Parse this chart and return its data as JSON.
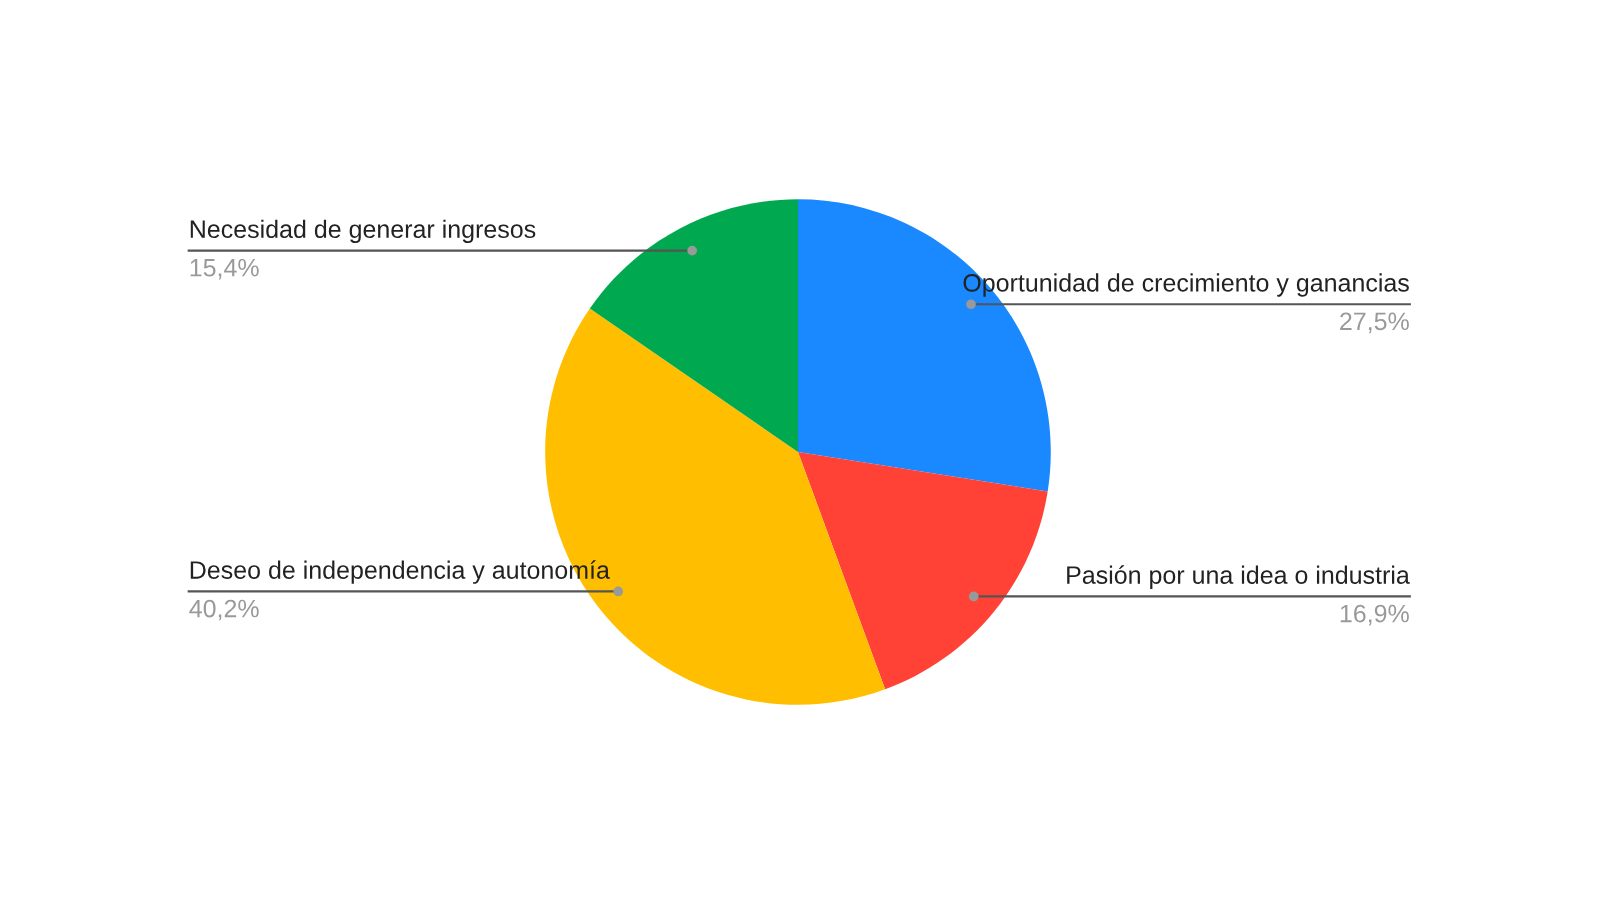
{
  "chart_data": {
    "type": "pie",
    "categories": [
      "Oportunidad de crecimiento y ganancias",
      "Pasión por una idea o industria",
      "Deseo de independencia y autonomía",
      "Necesidad de generar ingresos"
    ],
    "values": [
      27.5,
      16.9,
      40.2,
      15.4
    ],
    "colors": [
      "#1a88ff",
      "#ff4136",
      "#ffbf00",
      "#00a94f"
    ],
    "value_labels": [
      "27,5%",
      "16,9%",
      "40,2%",
      "15,4%"
    ]
  }
}
